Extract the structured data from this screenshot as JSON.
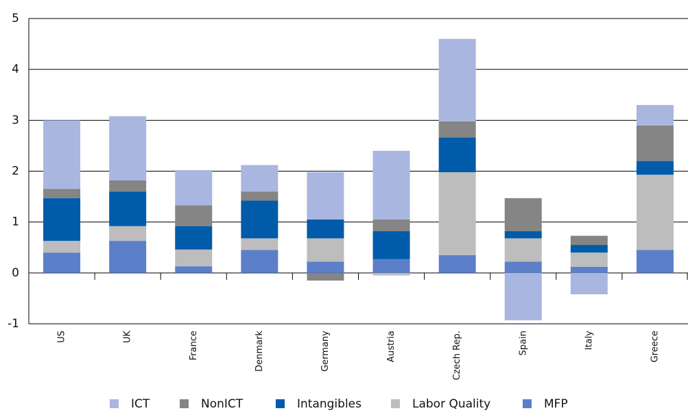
{
  "chart_data": {
    "type": "stacked_bar",
    "categories": [
      "US",
      "UK",
      "France",
      "Denmark",
      "Germany",
      "Austria",
      "Czech Rep.",
      "Spain",
      "Italy",
      "Greece"
    ],
    "series": [
      {
        "name": "ICT",
        "color": "#a9b6e0",
        "values": [
          1.35,
          1.26,
          0.69,
          0.52,
          0.93,
          1.35,
          1.62,
          -0.93,
          -0.42,
          0.4
        ]
      },
      {
        "name": "NonICT",
        "color": "#858585",
        "values": [
          0.18,
          0.22,
          0.41,
          0.18,
          -0.15,
          0.23,
          0.32,
          0.65,
          0.18,
          0.7
        ]
      },
      {
        "name": "Intangibles",
        "color": "#005baa",
        "values": [
          0.84,
          0.68,
          0.46,
          0.74,
          0.37,
          0.55,
          0.68,
          0.14,
          0.15,
          0.27
        ]
      },
      {
        "name": "Labor Quality",
        "color": "#bdbdbd",
        "values": [
          0.23,
          0.29,
          0.33,
          0.23,
          0.46,
          -0.05,
          1.63,
          0.46,
          0.28,
          1.48
        ]
      },
      {
        "name": "MFP",
        "color": "#5b7fc9",
        "values": [
          0.4,
          0.63,
          0.13,
          0.45,
          0.22,
          0.27,
          0.35,
          0.22,
          0.12,
          0.45
        ]
      }
    ],
    "ylim": [
      -1,
      5
    ],
    "yticks": [
      -1,
      0,
      1,
      2,
      3,
      4,
      5
    ],
    "grid": true,
    "legend": "bottom"
  }
}
